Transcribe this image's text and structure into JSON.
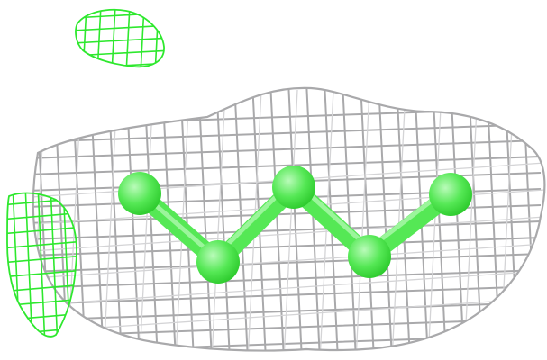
{
  "scene": {
    "subject": "molecular-model-in-density-mesh",
    "colors": {
      "background": "#ffffff",
      "gray_mesh": "#a9a9ab",
      "gray_mesh_light": "#d4d4d6",
      "green_mesh": "#2ee82e",
      "green_bond": "#55e855",
      "green_atom_light": "#b9fbb9",
      "green_atom_dark": "#2bc92b"
    },
    "atom_count": 5,
    "bond_count": 4
  }
}
